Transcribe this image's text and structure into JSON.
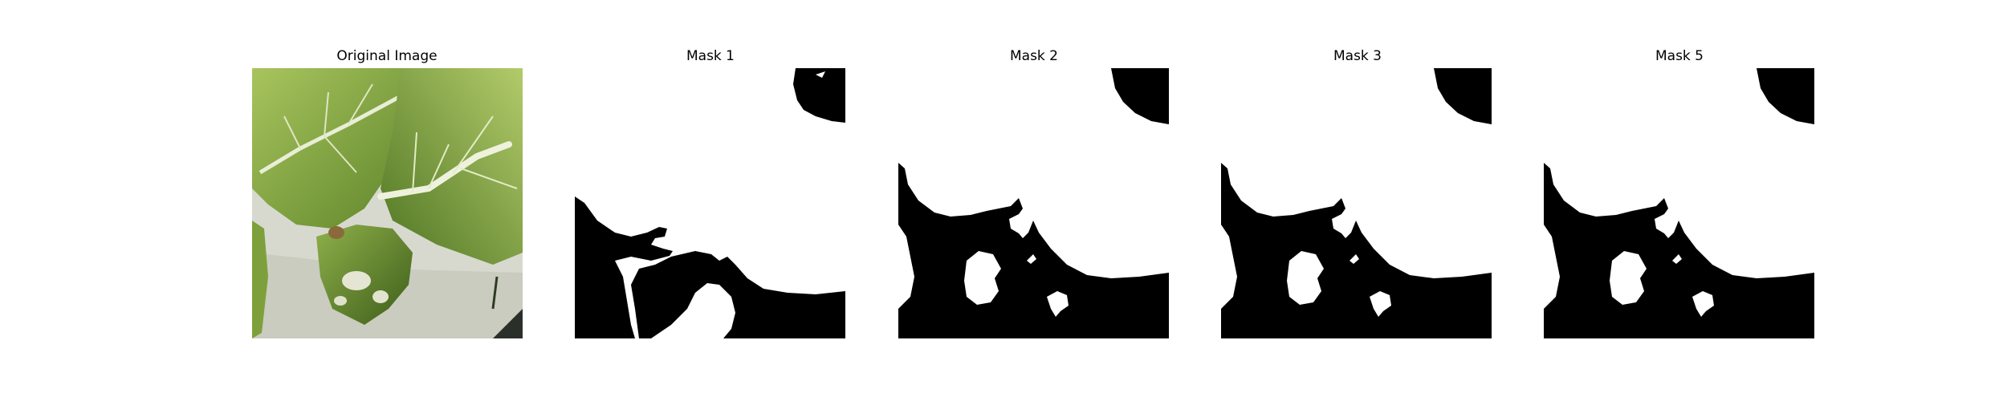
{
  "figure": {
    "panels": [
      {
        "title": "Original Image"
      },
      {
        "title": "Mask 1"
      },
      {
        "title": "Mask 2"
      },
      {
        "title": "Mask 3"
      },
      {
        "title": "Mask 5"
      }
    ]
  },
  "colors": {
    "mask_foreground": "#ffffff",
    "mask_background": "#000000",
    "leaf_light": "#9fbd5b",
    "leaf_mid": "#6f9436",
    "leaf_dark": "#3f5e1c",
    "vein": "#e8edd5",
    "background_gray": "#d9dbd2"
  }
}
